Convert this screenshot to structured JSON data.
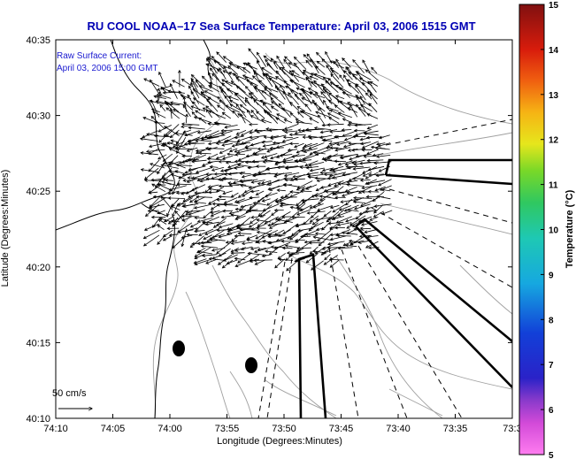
{
  "title": "RU COOL  NOAA–17  Sea Surface Temperature:  April 03, 2006 1515 GMT",
  "annotation": {
    "line1": "Raw Surface Current:",
    "line2": "April 03, 2006 15:00 GMT"
  },
  "scale_label": "50 cm/s",
  "x_axis": {
    "label": "Longitude (Degrees:Minutes)",
    "ticks": [
      "74:10",
      "74:05",
      "74:00",
      "73:55",
      "73:50",
      "73:45",
      "73:40",
      "73:35",
      "73:3"
    ]
  },
  "y_axis": {
    "label": "Latitude (Degrees:Minutes)",
    "ticks": [
      "40:35",
      "40:30",
      "40:25",
      "40:20",
      "40:15",
      "40:10"
    ]
  },
  "colorbar": {
    "label": "Temperature (°C)",
    "ticks": [
      "15",
      "14",
      "13",
      "12",
      "11",
      "10",
      "9",
      "8",
      "7",
      "6",
      "5"
    ],
    "range": [
      5,
      15
    ]
  },
  "colors": {
    "title": "#0000b4",
    "annotation": "#1a1ad0",
    "land": "#ffffff",
    "coastline": "#000000",
    "bathymetry": "#a0a0a0"
  }
}
